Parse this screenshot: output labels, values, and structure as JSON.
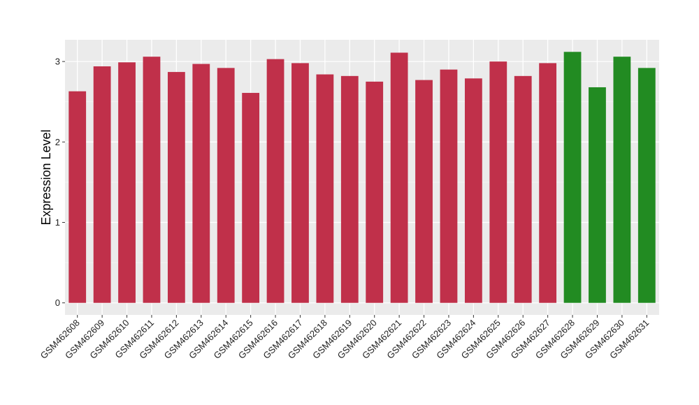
{
  "chart_data": {
    "type": "bar",
    "title": "",
    "xlabel": "",
    "ylabel": "Expression Level",
    "ylim": [
      -0.15,
      3.27
    ],
    "yticks": [
      0,
      1,
      2,
      3
    ],
    "grid": true,
    "legend": "none",
    "panel_background": "#ebebeb",
    "categories": [
      "GSM462608",
      "GSM462609",
      "GSM462610",
      "GSM462611",
      "GSM462612",
      "GSM462613",
      "GSM462614",
      "GSM462615",
      "GSM462616",
      "GSM462617",
      "GSM462618",
      "GSM462619",
      "GSM462620",
      "GSM462621",
      "GSM462622",
      "GSM462623",
      "GSM462624",
      "GSM462625",
      "GSM462626",
      "GSM462627",
      "GSM462628",
      "GSM462629",
      "GSM462630",
      "GSM462631"
    ],
    "values": [
      2.63,
      2.94,
      2.99,
      3.06,
      2.87,
      2.97,
      2.92,
      2.61,
      3.03,
      2.98,
      2.84,
      2.82,
      2.75,
      3.11,
      2.77,
      2.9,
      2.79,
      3.0,
      2.82,
      2.98,
      3.12,
      2.68,
      3.06,
      2.92
    ],
    "colors": [
      "#c0304a",
      "#c0304a",
      "#c0304a",
      "#c0304a",
      "#c0304a",
      "#c0304a",
      "#c0304a",
      "#c0304a",
      "#c0304a",
      "#c0304a",
      "#c0304a",
      "#c0304a",
      "#c0304a",
      "#c0304a",
      "#c0304a",
      "#c0304a",
      "#c0304a",
      "#c0304a",
      "#c0304a",
      "#c0304a",
      "#228b22",
      "#228b22",
      "#228b22",
      "#228b22"
    ]
  }
}
